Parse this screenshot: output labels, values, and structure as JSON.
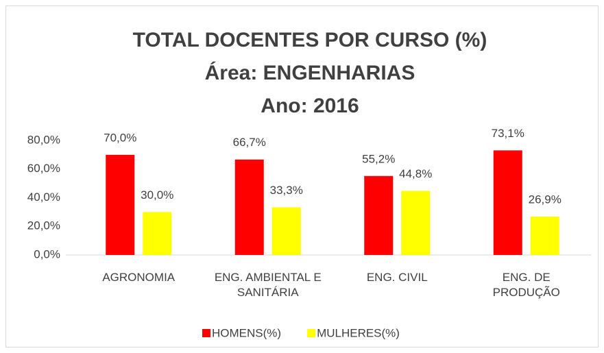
{
  "chart_data": {
    "type": "bar",
    "title": [
      "TOTAL DOCENTES POR CURSO (%)",
      "Área: ENGENHARIAS",
      "Ano: 2016"
    ],
    "categories": [
      "AGRONOMIA",
      "ENG. AMBIENTAL E SANITÁRIA",
      "ENG. CIVIL",
      "ENG. DE PRODUÇÃO"
    ],
    "series": [
      {
        "name": "HOMENS(%)",
        "color": "#ff0000",
        "values": [
          70.0,
          66.7,
          55.2,
          73.1
        ],
        "value_labels": [
          "70,0%",
          "66,7%",
          "55,2%",
          "73,1%"
        ]
      },
      {
        "name": "MULHERES(%)",
        "color": "#ffff00",
        "values": [
          30.0,
          33.3,
          44.8,
          26.9
        ],
        "value_labels": [
          "30,0%",
          "33,3%",
          "44,8%",
          "26,9%"
        ]
      }
    ],
    "ylim": [
      0,
      80
    ],
    "yticks": [
      {
        "value": 0,
        "label": "0,0%"
      },
      {
        "value": 20,
        "label": "20,0%"
      },
      {
        "value": 40,
        "label": "40,0%"
      },
      {
        "value": 60,
        "label": "60,0%"
      },
      {
        "value": 80,
        "label": "80,0%"
      }
    ],
    "grid": false,
    "legend": "bottom"
  }
}
